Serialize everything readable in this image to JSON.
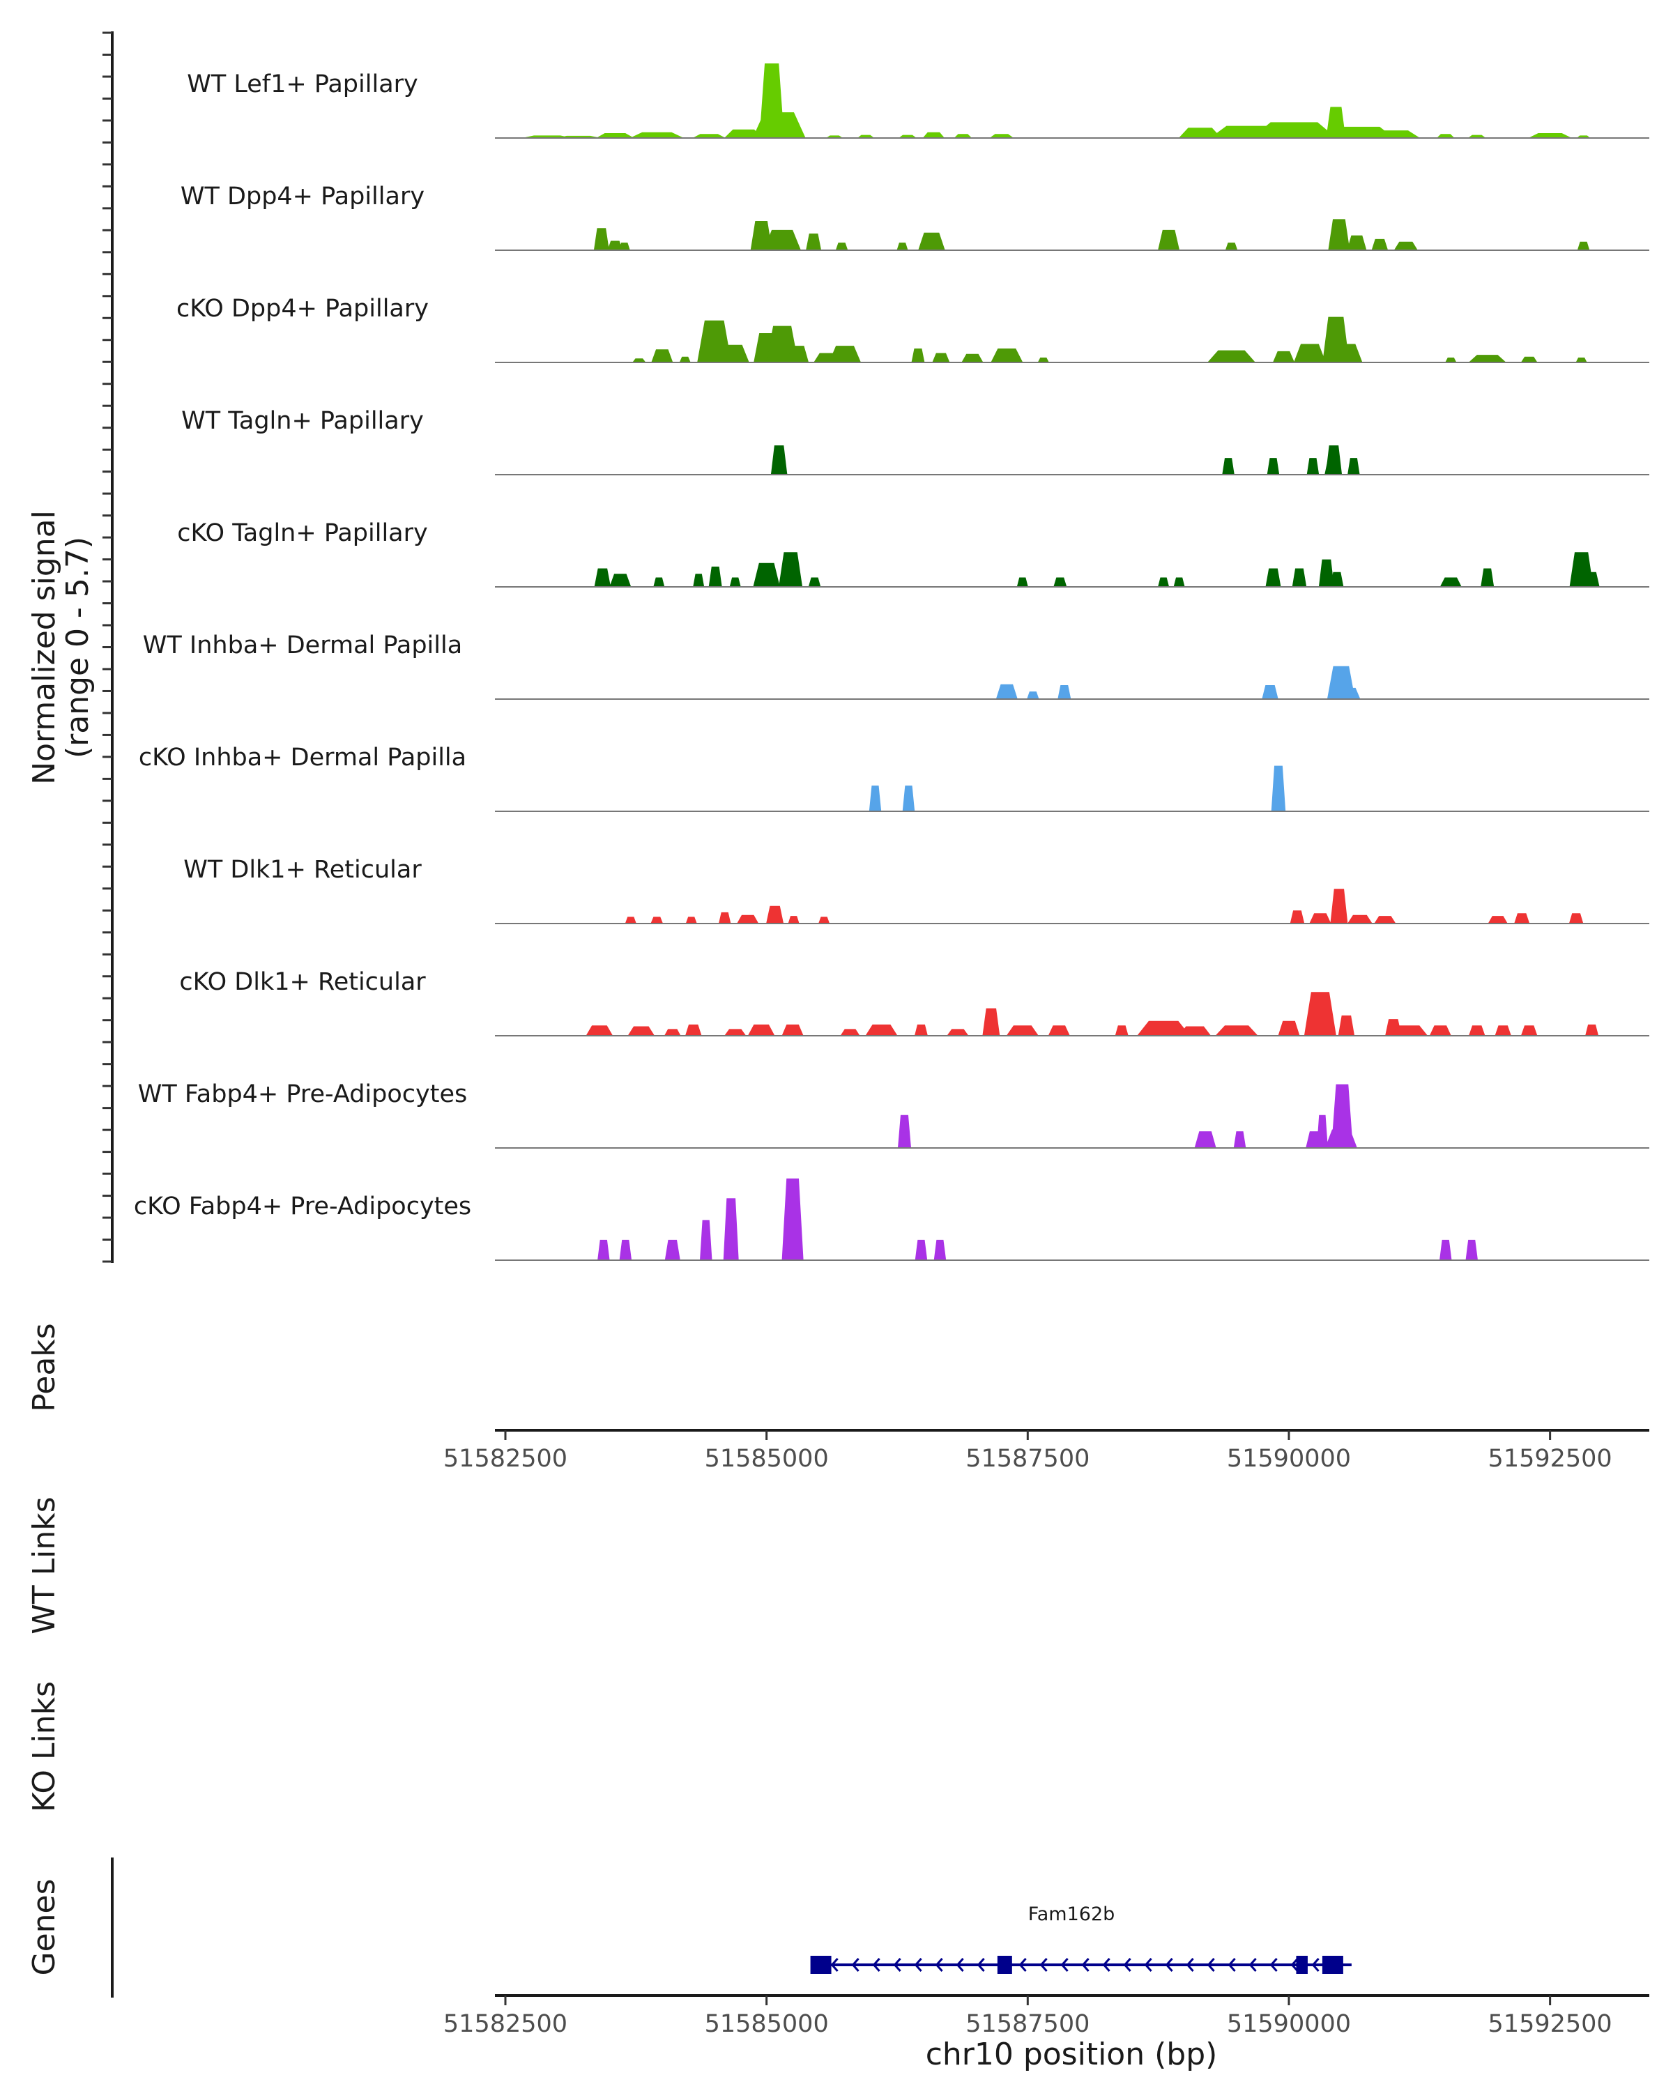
{
  "chart_data": {
    "type": "area",
    "title": "",
    "chromosome": "chr10",
    "xlabel": "chr10 position (bp)",
    "xlim": [
      51582400,
      51593450
    ],
    "x_ticks": [
      "51582500",
      "51585000",
      "51587500",
      "51590000",
      "51592500"
    ],
    "x_tick_values": [
      51582500,
      51585000,
      51587500,
      51590000,
      51592500
    ],
    "ylabel_line1": "Normalized signal",
    "ylabel_line2": "(range 0 - 5.7)",
    "ylim": [
      0,
      5.7
    ],
    "series": [
      {
        "name": "WT Lef1+ Papillary",
        "color": "#66CC00",
        "peaks": [
          [
            51582900,
            450,
            0.12
          ],
          [
            51583200,
            400,
            0.1
          ],
          [
            51583550,
            350,
            0.25
          ],
          [
            51583950,
            500,
            0.3
          ],
          [
            51584450,
            300,
            0.2
          ],
          [
            51584780,
            360,
            0.45
          ],
          [
            51585050,
            230,
            4.1
          ],
          [
            51585120,
            500,
            1.4
          ],
          [
            51585650,
            150,
            0.12
          ],
          [
            51585950,
            150,
            0.15
          ],
          [
            51586350,
            160,
            0.15
          ],
          [
            51586600,
            200,
            0.3
          ],
          [
            51586880,
            160,
            0.2
          ],
          [
            51587250,
            220,
            0.2
          ],
          [
            51589150,
            400,
            0.55
          ],
          [
            51589600,
            700,
            0.65
          ],
          [
            51590050,
            800,
            0.85
          ],
          [
            51590450,
            180,
            1.7
          ],
          [
            51590700,
            600,
            0.6
          ],
          [
            51591000,
            500,
            0.4
          ],
          [
            51591500,
            160,
            0.2
          ],
          [
            51591800,
            160,
            0.15
          ],
          [
            51592500,
            400,
            0.25
          ],
          [
            51592820,
            120,
            0.12
          ]
        ]
      },
      {
        "name": "WT Dpp4+ Papillary",
        "color": "#4E9A06",
        "peaks": [
          [
            51583420,
            140,
            1.2
          ],
          [
            51583550,
            140,
            0.5
          ],
          [
            51583640,
            100,
            0.4
          ],
          [
            51584950,
            200,
            1.6
          ],
          [
            51585150,
            350,
            1.1
          ],
          [
            51585450,
            140,
            0.9
          ],
          [
            51585720,
            110,
            0.4
          ],
          [
            51586300,
            100,
            0.4
          ],
          [
            51586580,
            250,
            0.95
          ],
          [
            51588850,
            200,
            1.1
          ],
          [
            51589450,
            110,
            0.4
          ],
          [
            51590480,
            200,
            1.7
          ],
          [
            51590650,
            180,
            0.8
          ],
          [
            51590870,
            150,
            0.6
          ],
          [
            51591120,
            220,
            0.45
          ],
          [
            51592820,
            110,
            0.45
          ]
        ]
      },
      {
        "name": "cKO Dpp4+ Papillary",
        "color": "#4E9A06",
        "peaks": [
          [
            51583780,
            120,
            0.2
          ],
          [
            51584000,
            200,
            0.7
          ],
          [
            51584220,
            100,
            0.3
          ],
          [
            51584500,
            320,
            2.3
          ],
          [
            51584680,
            300,
            0.95
          ],
          [
            51585000,
            240,
            1.6
          ],
          [
            51585150,
            300,
            2.0
          ],
          [
            51585300,
            200,
            0.9
          ],
          [
            51585580,
            250,
            0.5
          ],
          [
            51585750,
            300,
            0.9
          ],
          [
            51586450,
            120,
            0.75
          ],
          [
            51586670,
            160,
            0.5
          ],
          [
            51586970,
            200,
            0.45
          ],
          [
            51587300,
            300,
            0.75
          ],
          [
            51587650,
            100,
            0.25
          ],
          [
            51589450,
            450,
            0.65
          ],
          [
            51589950,
            200,
            0.6
          ],
          [
            51590200,
            300,
            1.0
          ],
          [
            51590450,
            250,
            2.5
          ],
          [
            51590550,
            300,
            1.0
          ],
          [
            51591550,
            100,
            0.25
          ],
          [
            51591900,
            350,
            0.4
          ],
          [
            51592300,
            150,
            0.3
          ],
          [
            51592800,
            100,
            0.25
          ]
        ]
      },
      {
        "name": "WT Tagln+ Papillary",
        "color": "#006400",
        "peaks": [
          [
            51585120,
            150,
            1.6
          ],
          [
            51585120,
            150,
            0.9
          ],
          [
            51589420,
            110,
            0.9
          ],
          [
            51589850,
            110,
            0.9
          ],
          [
            51590230,
            110,
            0.9
          ],
          [
            51590430,
            150,
            1.6
          ],
          [
            51590420,
            150,
            0.9
          ],
          [
            51590620,
            110,
            0.9
          ]
        ]
      },
      {
        "name": "cKO Tagln+ Papillary",
        "color": "#006400",
        "peaks": [
          [
            51583430,
            150,
            1.0
          ],
          [
            51583600,
            200,
            0.7
          ],
          [
            51583970,
            100,
            0.5
          ],
          [
            51584350,
            100,
            0.7
          ],
          [
            51584510,
            120,
            1.1
          ],
          [
            51584700,
            100,
            0.5
          ],
          [
            51585000,
            250,
            1.3
          ],
          [
            51585230,
            220,
            1.9
          ],
          [
            51585460,
            110,
            0.5
          ],
          [
            51587450,
            100,
            0.5
          ],
          [
            51587810,
            120,
            0.5
          ],
          [
            51588800,
            100,
            0.5
          ],
          [
            51588950,
            100,
            0.5
          ],
          [
            51589850,
            140,
            1.0
          ],
          [
            51590100,
            130,
            1.0
          ],
          [
            51590360,
            140,
            1.5
          ],
          [
            51590460,
            120,
            0.8
          ],
          [
            51591550,
            200,
            0.5
          ],
          [
            51591900,
            120,
            1.0
          ],
          [
            51592800,
            220,
            1.9
          ],
          [
            51592900,
            140,
            0.8
          ]
        ]
      },
      {
        "name": "WT Inhba+ Dermal Papilla",
        "color": "#56A4E9",
        "peaks": [
          [
            51587300,
            200,
            0.8
          ],
          [
            51587550,
            110,
            0.4
          ],
          [
            51587850,
            120,
            0.75
          ],
          [
            51589820,
            150,
            0.75
          ],
          [
            51590500,
            260,
            1.8
          ],
          [
            51590580,
            200,
            0.6
          ]
        ]
      },
      {
        "name": "cKO Inhba+ Dermal Papilla",
        "color": "#56A4E9",
        "peaks": [
          [
            51586040,
            110,
            1.4
          ],
          [
            51586360,
            110,
            1.4
          ],
          [
            51589900,
            130,
            2.5
          ]
        ]
      },
      {
        "name": "WT Dlk1+ Reticular",
        "color": "#EE3333",
        "peaks": [
          [
            51583700,
            100,
            0.35
          ],
          [
            51583950,
            110,
            0.35
          ],
          [
            51584280,
            100,
            0.35
          ],
          [
            51584600,
            110,
            0.6
          ],
          [
            51584820,
            200,
            0.45
          ],
          [
            51585080,
            160,
            0.95
          ],
          [
            51585260,
            100,
            0.4
          ],
          [
            51585550,
            100,
            0.35
          ],
          [
            51590080,
            130,
            0.7
          ],
          [
            51590300,
            200,
            0.55
          ],
          [
            51590480,
            160,
            1.9
          ],
          [
            51590680,
            230,
            0.45
          ],
          [
            51590920,
            200,
            0.4
          ],
          [
            51592000,
            180,
            0.4
          ],
          [
            51592230,
            140,
            0.55
          ],
          [
            51592750,
            130,
            0.55
          ]
        ]
      },
      {
        "name": "cKO Dlk1+ Reticular",
        "color": "#EE3333",
        "peaks": [
          [
            51583400,
            250,
            0.55
          ],
          [
            51583800,
            250,
            0.5
          ],
          [
            51584100,
            150,
            0.35
          ],
          [
            51584300,
            150,
            0.6
          ],
          [
            51584700,
            200,
            0.35
          ],
          [
            51584950,
            250,
            0.6
          ],
          [
            51585250,
            200,
            0.6
          ],
          [
            51585800,
            180,
            0.35
          ],
          [
            51586100,
            300,
            0.6
          ],
          [
            51586480,
            120,
            0.6
          ],
          [
            51586830,
            200,
            0.35
          ],
          [
            51587150,
            160,
            1.5
          ],
          [
            51587450,
            300,
            0.55
          ],
          [
            51587800,
            200,
            0.55
          ],
          [
            51588400,
            120,
            0.55
          ],
          [
            51588800,
            500,
            0.8
          ],
          [
            51589100,
            300,
            0.5
          ],
          [
            51589500,
            400,
            0.55
          ],
          [
            51590000,
            200,
            0.8
          ],
          [
            51590300,
            300,
            2.4
          ],
          [
            51590550,
            150,
            1.1
          ],
          [
            51591000,
            150,
            0.9
          ],
          [
            51591150,
            350,
            0.55
          ],
          [
            51591450,
            200,
            0.55
          ],
          [
            51591800,
            150,
            0.55
          ],
          [
            51592050,
            150,
            0.55
          ],
          [
            51592300,
            150,
            0.55
          ],
          [
            51592900,
            120,
            0.6
          ]
        ]
      },
      {
        "name": "WT Fabp4+ Pre-Adipocytes",
        "color": "#A932E6",
        "peaks": [
          [
            51586320,
            120,
            1.8
          ],
          [
            51586320,
            120,
            0.9
          ],
          [
            51589200,
            200,
            0.9
          ],
          [
            51589530,
            110,
            0.9
          ],
          [
            51590250,
            170,
            0.9
          ],
          [
            51590320,
            100,
            1.8
          ],
          [
            51590510,
            200,
            3.5
          ],
          [
            51590500,
            300,
            1.0
          ]
        ]
      },
      {
        "name": "cKO Fabp4+ Pre-Adipocytes",
        "color": "#A932E6",
        "peaks": [
          [
            51583440,
            110,
            1.1
          ],
          [
            51583650,
            110,
            1.1
          ],
          [
            51584100,
            140,
            1.1
          ],
          [
            51584420,
            110,
            2.2
          ],
          [
            51584660,
            140,
            3.4
          ],
          [
            51585250,
            200,
            4.5
          ],
          [
            51586480,
            110,
            1.1
          ],
          [
            51586660,
            110,
            1.1
          ],
          [
            51591500,
            110,
            1.1
          ],
          [
            51591750,
            110,
            1.1
          ]
        ]
      }
    ],
    "tracks": {
      "peaks_label": "Peaks",
      "wt_links_label": "WT Links",
      "ko_links_label": "KO Links",
      "genes_label": "Genes"
    },
    "gene": {
      "name": "Fam162b",
      "color": "#00008B",
      "strand": "-",
      "start": 51585480,
      "end": 51590600,
      "exons": [
        [
          51585420,
          51585620
        ],
        [
          51587210,
          51587350
        ],
        [
          51590070,
          51590180
        ],
        [
          51590320,
          51590520
        ]
      ]
    }
  }
}
